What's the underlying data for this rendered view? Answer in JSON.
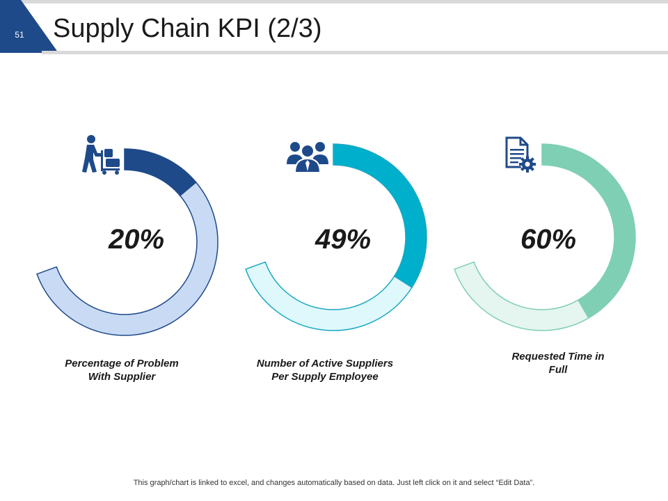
{
  "slide": {
    "number": "51",
    "title": "Supply Chain KPI (2/3)"
  },
  "colors": {
    "badge": "#1f4a8a",
    "rule": "#d9d9d9"
  },
  "chart_data": [
    {
      "type": "donut",
      "value": 20,
      "label_text": "20%",
      "caption_line1": "Percentage of Problem",
      "caption_line2": "With Supplier",
      "icon": "delivery-worker-icon",
      "fill_color": "#1f4a8a",
      "rest_color": "#c9daf4",
      "outline_color": "#1f4a8a"
    },
    {
      "type": "donut",
      "value": 49,
      "label_text": "49%",
      "caption_line1": "Number of Active Suppliers",
      "caption_line2": "Per Supply Employee",
      "icon": "team-icon",
      "fill_color": "#00afcb",
      "rest_color": "#dff8fb",
      "outline_color": "#1aa8c2"
    },
    {
      "type": "donut",
      "value": 60,
      "label_text": "60%",
      "caption_line1": "Requested Time in",
      "caption_line2": "Full",
      "icon": "document-settings-icon",
      "fill_color": "#7fcfb4",
      "rest_color": "#e5f5ef",
      "outline_color": "#7fcfb4"
    }
  ],
  "footer": {
    "note": "This graph/chart is linked to excel, and changes automatically based on data. Just left click on it and select “Edit Data”."
  }
}
